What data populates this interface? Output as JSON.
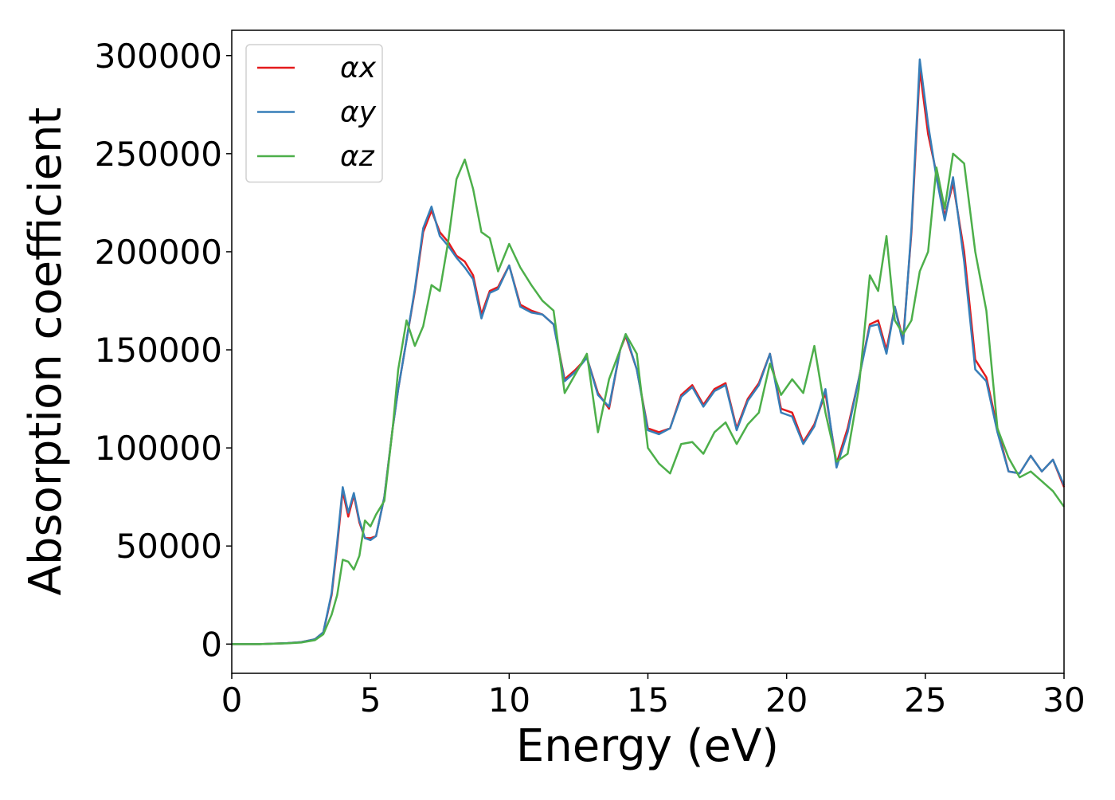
{
  "chart_data": {
    "type": "line",
    "xlabel": "Energy (eV)",
    "ylabel": "Absorption coefficient",
    "x": [
      0,
      1,
      2,
      2.5,
      3,
      3.3,
      3.6,
      3.8,
      4.0,
      4.2,
      4.4,
      4.6,
      4.8,
      5.0,
      5.2,
      5.5,
      5.8,
      6.0,
      6.3,
      6.6,
      6.9,
      7.2,
      7.5,
      7.8,
      8.1,
      8.4,
      8.7,
      9.0,
      9.3,
      9.6,
      10.0,
      10.4,
      10.8,
      11.2,
      11.6,
      12.0,
      12.4,
      12.8,
      13.2,
      13.6,
      14.0,
      14.2,
      14.6,
      15.0,
      15.4,
      15.8,
      16.2,
      16.6,
      17.0,
      17.4,
      17.8,
      18.2,
      18.6,
      19.0,
      19.4,
      19.8,
      20.2,
      20.6,
      21.0,
      21.4,
      21.8,
      22.2,
      22.6,
      23.0,
      23.3,
      23.6,
      23.9,
      24.2,
      24.5,
      24.8,
      25.1,
      25.4,
      25.7,
      26.0,
      26.4,
      26.8,
      27.2,
      27.6,
      28.0,
      28.4,
      28.8,
      29.2,
      29.6,
      30.0
    ],
    "series": [
      {
        "name": "αx",
        "color": "#e41a1c",
        "values": [
          0,
          0,
          500,
          1000,
          2500,
          6000,
          25000,
          50000,
          78000,
          65000,
          76000,
          62000,
          54000,
          54000,
          55000,
          75000,
          110000,
          130000,
          155000,
          180000,
          210000,
          221000,
          210000,
          205000,
          198000,
          195000,
          188000,
          168000,
          180000,
          182000,
          193000,
          173000,
          170000,
          168000,
          163000,
          135000,
          140000,
          146000,
          128000,
          120000,
          150000,
          157000,
          140000,
          110000,
          108000,
          110000,
          127000,
          132000,
          122000,
          130000,
          133000,
          110000,
          125000,
          133000,
          148000,
          120000,
          118000,
          103000,
          112000,
          128000,
          92000,
          110000,
          135000,
          163000,
          165000,
          150000,
          172000,
          155000,
          210000,
          293000,
          260000,
          240000,
          218000,
          235000,
          200000,
          145000,
          136000,
          110000,
          88000,
          87000,
          96000,
          88000,
          94000,
          80000
        ]
      },
      {
        "name": "αy",
        "color": "#377eb8",
        "values": [
          0,
          0,
          500,
          1000,
          2500,
          6000,
          26000,
          52000,
          80000,
          67000,
          77000,
          63000,
          54000,
          53000,
          55000,
          75000,
          110000,
          130000,
          155000,
          181000,
          212000,
          223000,
          208000,
          203000,
          197000,
          192000,
          186000,
          166000,
          179000,
          181000,
          193000,
          172000,
          169000,
          168000,
          163000,
          134000,
          139000,
          146000,
          127000,
          121000,
          150000,
          158000,
          140000,
          109000,
          107000,
          110000,
          126000,
          131000,
          121000,
          129000,
          132000,
          109000,
          124000,
          132000,
          148000,
          118000,
          116000,
          102000,
          111000,
          130000,
          90000,
          108000,
          135000,
          162000,
          163000,
          148000,
          172000,
          153000,
          212000,
          298000,
          265000,
          238000,
          216000,
          238000,
          195000,
          140000,
          134000,
          108000,
          88000,
          87000,
          96000,
          88000,
          94000,
          81000
        ]
      },
      {
        "name": "αz",
        "color": "#4daf4a",
        "values": [
          0,
          0,
          400,
          800,
          2000,
          5000,
          15000,
          25000,
          43000,
          42000,
          38000,
          45000,
          63000,
          60000,
          66000,
          73000,
          110000,
          140000,
          165000,
          152000,
          162000,
          183000,
          180000,
          205000,
          237000,
          247000,
          232000,
          210000,
          207000,
          190000,
          204000,
          192000,
          183000,
          175000,
          170000,
          128000,
          138000,
          148000,
          108000,
          135000,
          150000,
          158000,
          148000,
          100000,
          92000,
          87000,
          102000,
          103000,
          97000,
          108000,
          113000,
          102000,
          112000,
          118000,
          143000,
          127000,
          135000,
          128000,
          152000,
          118000,
          93000,
          97000,
          130000,
          188000,
          180000,
          208000,
          165000,
          158000,
          165000,
          190000,
          200000,
          243000,
          222000,
          250000,
          245000,
          200000,
          170000,
          110000,
          95000,
          85000,
          88000,
          83000,
          78000,
          70000
        ]
      }
    ],
    "xlim": [
      0,
      30
    ],
    "xticks": [
      0,
      5,
      10,
      15,
      20,
      25,
      30
    ],
    "ylim": [
      -14900,
      312900
    ],
    "yticks": [
      0,
      50000,
      100000,
      150000,
      200000,
      250000,
      300000
    ],
    "grid": false,
    "legend_loc": "upper left"
  }
}
